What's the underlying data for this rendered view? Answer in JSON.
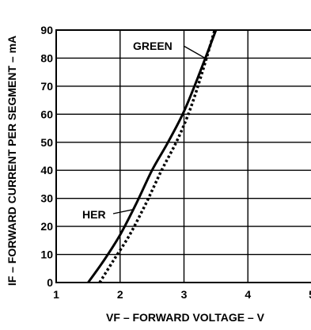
{
  "chart_data": {
    "type": "line",
    "title": "",
    "xlabel": "F – FORWARD VOLTAGE – V",
    "xlabel_prefix": "V",
    "ylabel": "F – FORWARD CURRENT PER SEGMENT – mA",
    "ylabel_prefix": "I",
    "xlim": [
      1,
      5
    ],
    "ylim": [
      0,
      90
    ],
    "xticks": [
      "1",
      "2",
      "3",
      "4",
      "5"
    ],
    "yticks": [
      "0",
      "10",
      "20",
      "30",
      "40",
      "50",
      "60",
      "70",
      "80",
      "90"
    ],
    "grid": true,
    "series": [
      {
        "name": "HER",
        "style": "solid",
        "color": "#000000",
        "x": [
          1.5,
          1.75,
          2.0,
          2.25,
          2.5,
          2.75,
          3.0,
          3.25,
          3.5
        ],
        "y": [
          0,
          8,
          17,
          28,
          40,
          50,
          61,
          75,
          90
        ]
      },
      {
        "name": "GREEN",
        "style": "dotted",
        "color": "#000000",
        "x": [
          1.68,
          1.9,
          2.15,
          2.4,
          2.65,
          2.9,
          3.1,
          3.3,
          3.48
        ],
        "y": [
          0,
          8,
          17,
          28,
          40,
          51,
          62,
          76,
          90
        ]
      }
    ]
  }
}
